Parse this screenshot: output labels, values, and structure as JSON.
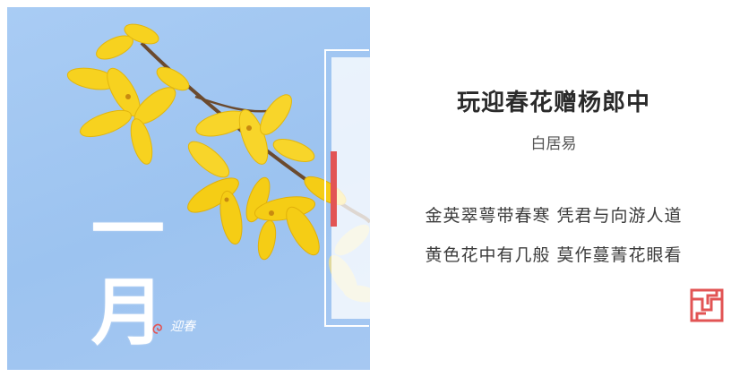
{
  "artwork": {
    "month_label": "一月",
    "flower_label": "迎春",
    "colors": {
      "sky": "#9cc3f0",
      "petal": "#f7d21f",
      "accent": "#e25454"
    },
    "icons": [
      "forsythia-branch-illustration",
      "swirl-icon"
    ]
  },
  "poem": {
    "title": "玩迎春花赠杨郎中",
    "author": "白居易",
    "lines": [
      "金英翠萼带春寒  凭君与向游人道",
      "黄色花中有几般  莫作蔓菁花眼看"
    ]
  },
  "decor": {
    "seal_icon": "fret-seal-icon"
  }
}
